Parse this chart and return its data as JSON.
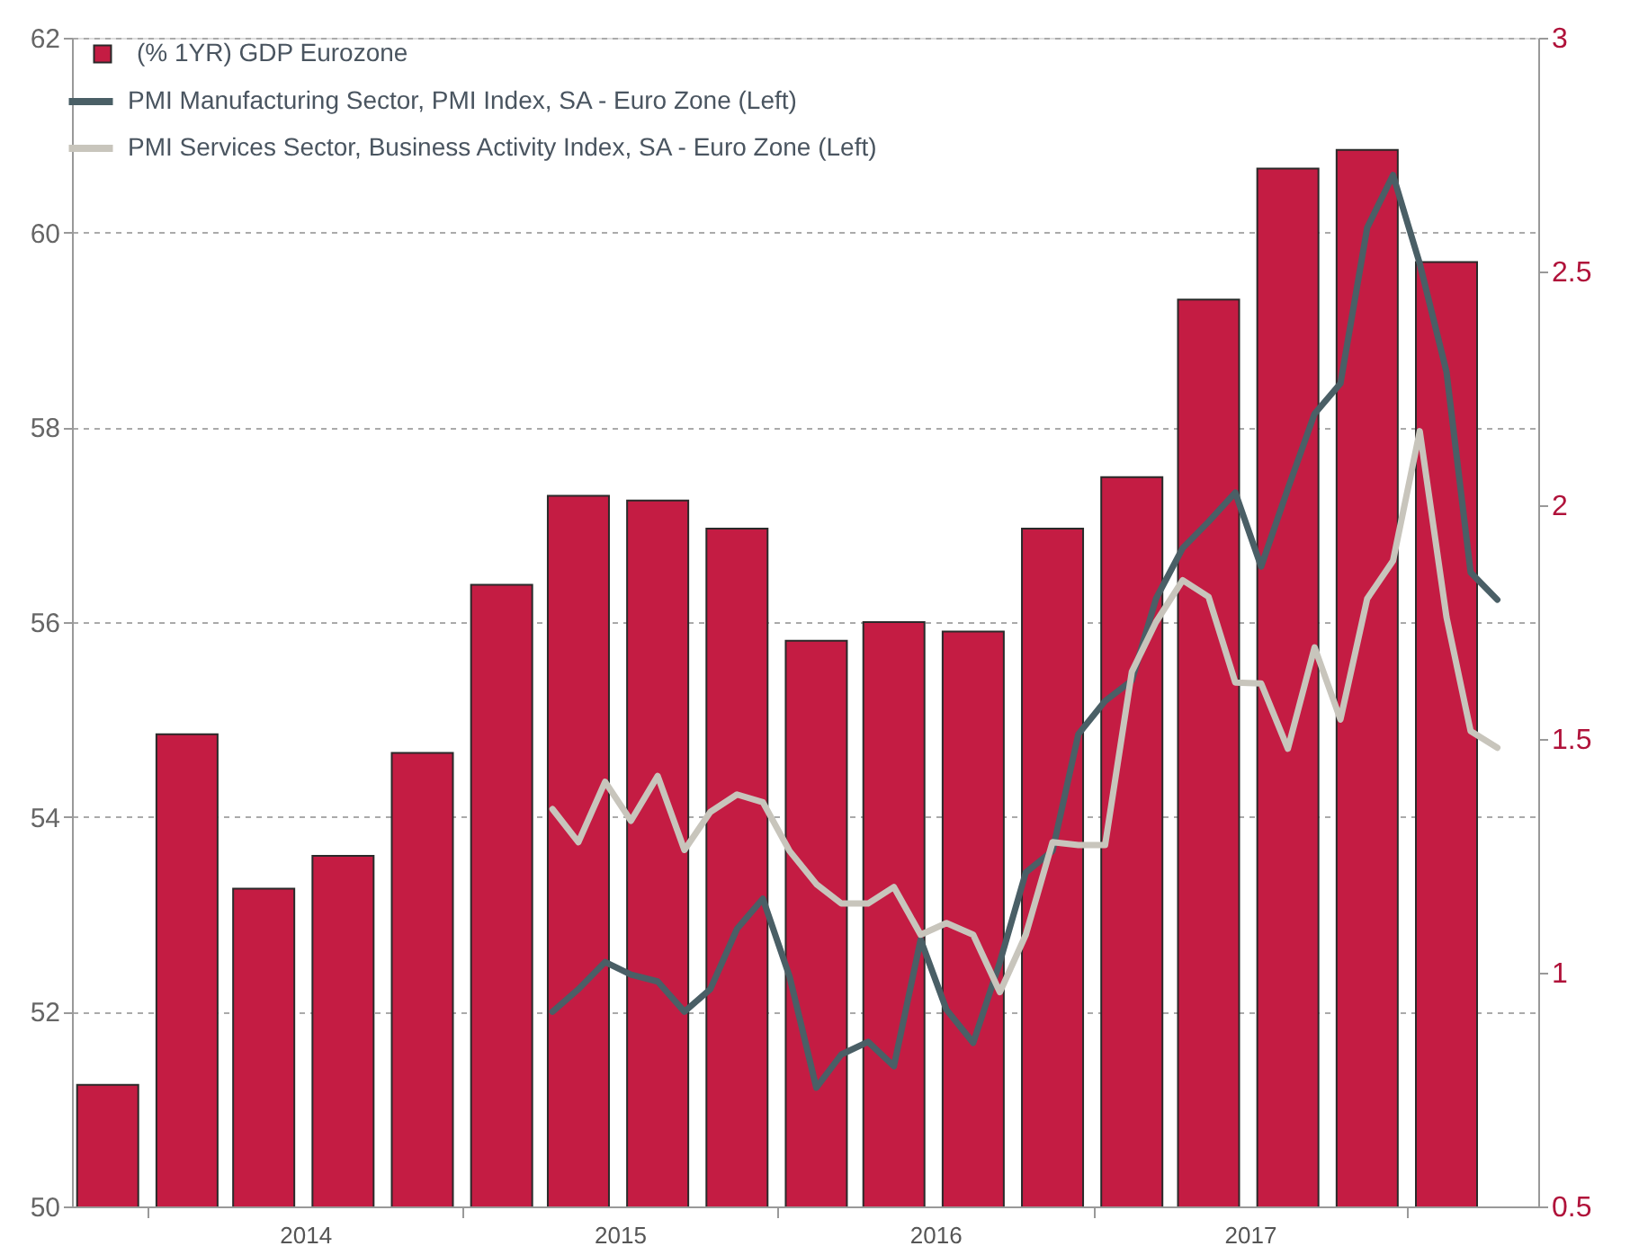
{
  "chart_data": {
    "type": "bar",
    "x": [
      "2013-11-15",
      "2014-02-15",
      "2014-05-15",
      "2014-08-15",
      "2014-11-15",
      "2015-02-15",
      "2015-05-15",
      "2015-08-15",
      "2015-11-15",
      "2016-02-15",
      "2016-05-15",
      "2016-08-15",
      "2016-11-15",
      "2017-02-15",
      "2017-05-15",
      "2017-08-15",
      "2017-11-15",
      "2018-02-15"
    ],
    "series": [
      {
        "name": "(% 1YR) GDP Eurozone",
        "axis": "y2",
        "color": "#c41c43",
        "values": [
          0.76,
          1.51,
          1.18,
          1.25,
          1.47,
          1.83,
          2.02,
          2.01,
          1.95,
          1.71,
          1.75,
          1.73,
          1.95,
          2.06,
          2.44,
          2.72,
          2.76,
          2.52
        ]
      },
      {
        "name": "PMI Manufacturing Sector, PMI Index, SA - Euro Zone  (Left)",
        "type": "line",
        "color": "#4a5f66",
        "x": [
          "2015-04-15",
          "2015-05-15",
          "2015-06-15",
          "2015-07-15",
          "2015-08-15",
          "2015-09-15",
          "2015-10-15",
          "2015-11-15",
          "2015-12-15",
          "2016-01-15",
          "2016-02-15",
          "2016-03-15",
          "2016-04-15",
          "2016-05-15",
          "2016-06-15",
          "2016-07-15",
          "2016-08-15",
          "2016-09-15",
          "2016-10-15",
          "2016-11-15",
          "2016-12-15",
          "2017-01-15",
          "2017-02-15",
          "2017-03-15",
          "2017-04-15",
          "2017-05-15",
          "2017-06-15",
          "2017-07-15",
          "2017-08-15",
          "2017-09-15",
          "2017-10-15",
          "2017-11-15",
          "2017-12-15",
          "2018-01-15",
          "2018-02-15",
          "2018-03-15",
          "2018-04-15"
        ],
        "values": [
          52.0,
          52.23,
          52.51,
          52.38,
          52.31,
          52.0,
          52.23,
          52.85,
          53.16,
          52.36,
          51.22,
          51.56,
          51.69,
          51.44,
          52.74,
          52.02,
          51.68,
          52.51,
          53.43,
          53.65,
          54.85,
          55.19,
          55.4,
          56.24,
          56.76,
          57.03,
          57.33,
          56.57,
          57.37,
          58.14,
          58.45,
          60.05,
          60.59,
          59.68,
          58.57,
          56.51,
          56.23
        ]
      },
      {
        "name": "PMI Services Sector, Business Activity Index, SA - Euro Zone  (Left)",
        "type": "line",
        "color": "#c8c5bc",
        "x": [
          "2015-04-15",
          "2015-05-15",
          "2015-06-15",
          "2015-07-15",
          "2015-08-15",
          "2015-09-15",
          "2015-10-15",
          "2015-11-15",
          "2015-12-15",
          "2016-01-15",
          "2016-02-15",
          "2016-03-15",
          "2016-04-15",
          "2016-05-15",
          "2016-06-15",
          "2016-07-15",
          "2016-08-15",
          "2016-09-15",
          "2016-10-15",
          "2016-11-15",
          "2016-12-15",
          "2017-01-15",
          "2017-02-15",
          "2017-03-15",
          "2017-04-15",
          "2017-05-15",
          "2017-06-15",
          "2017-07-15",
          "2017-08-15",
          "2017-09-15",
          "2017-10-15",
          "2017-11-15",
          "2017-12-15",
          "2018-01-15",
          "2018-02-15",
          "2018-03-15",
          "2018-04-15"
        ],
        "values": [
          54.08,
          53.74,
          54.36,
          53.96,
          54.42,
          53.66,
          54.05,
          54.23,
          54.15,
          53.65,
          53.31,
          53.11,
          53.11,
          53.28,
          52.79,
          52.91,
          52.79,
          52.2,
          52.79,
          53.74,
          53.71,
          53.71,
          55.49,
          56.0,
          56.43,
          56.26,
          55.38,
          55.37,
          54.7,
          55.74,
          55.0,
          56.24,
          56.63,
          57.96,
          56.05,
          54.88,
          54.71
        ]
      }
    ],
    "xlim": [
      "2013-10-15",
      "2018-05-22"
    ],
    "xticks": [
      {
        "value": "2014-01-01",
        "label": null
      },
      {
        "value": "2014-07-02",
        "label": "2014"
      },
      {
        "value": "2015-01-01",
        "label": null
      },
      {
        "value": "2015-07-02",
        "label": "2015"
      },
      {
        "value": "2016-01-01",
        "label": null
      },
      {
        "value": "2016-07-02",
        "label": "2016"
      },
      {
        "value": "2017-01-01",
        "label": null
      },
      {
        "value": "2017-07-02",
        "label": "2017"
      },
      {
        "value": "2018-01-01",
        "label": null
      }
    ],
    "ylim": [
      50,
      62
    ],
    "yticks": [
      50,
      52,
      54,
      56,
      58,
      60,
      62
    ],
    "y2lim": [
      0.5,
      3
    ],
    "y2ticks": [
      0.5,
      1,
      1.5,
      2,
      2.5,
      3
    ],
    "grid": "y",
    "legend": "top left",
    "line_style": "solid"
  }
}
